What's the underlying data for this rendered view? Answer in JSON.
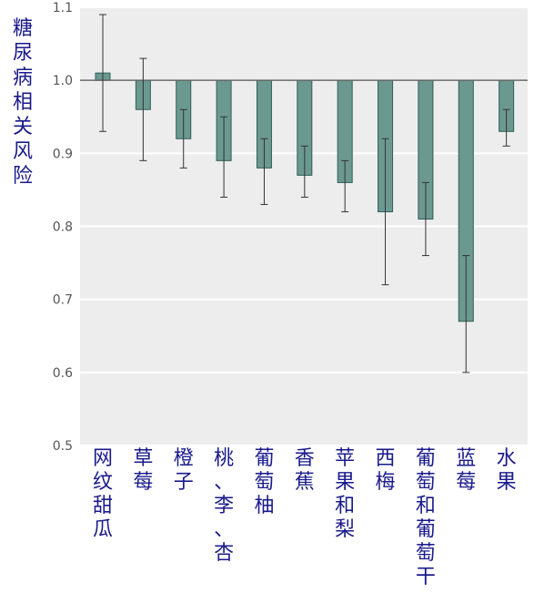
{
  "chart_data": {
    "type": "bar",
    "ylabel": "糖尿病相关风险",
    "xlabel": "",
    "ylim": [
      0.5,
      1.1
    ],
    "yticks": [
      "0.5",
      "0.6",
      "0.7",
      "0.8",
      "0.9",
      "1.0",
      "1.1"
    ],
    "baseline": 1.0,
    "grid": true,
    "categories": [
      "网纹甜瓜",
      "草莓",
      "橙子",
      "桃、李、杏",
      "葡萄柚",
      "香蕉",
      "苹果和梨",
      "西梅",
      "葡萄和葡萄干",
      "蓝莓",
      "水果"
    ],
    "values": [
      1.01,
      0.96,
      0.92,
      0.89,
      0.88,
      0.87,
      0.86,
      0.82,
      0.81,
      0.67,
      0.93
    ],
    "error_low": [
      0.93,
      0.89,
      0.88,
      0.84,
      0.83,
      0.84,
      0.82,
      0.72,
      0.76,
      0.6,
      0.91
    ],
    "error_high": [
      1.09,
      1.03,
      0.96,
      0.95,
      0.92,
      0.91,
      0.89,
      0.92,
      0.86,
      0.76,
      0.96
    ],
    "colors": {
      "bar": "#6b9990",
      "bar_edge": "#2f5f58",
      "plot_bg": "#ededed",
      "grid": "#ffffff",
      "baseline": "#666666",
      "label": "#1a1a8c"
    }
  }
}
